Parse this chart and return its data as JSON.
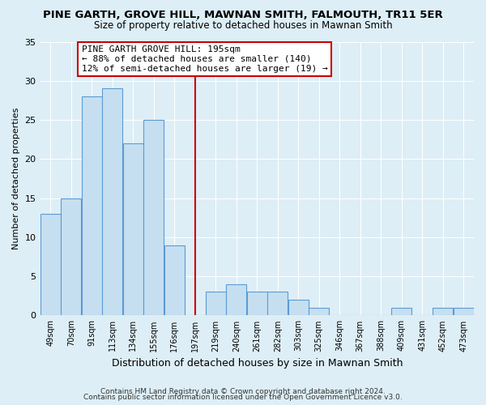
{
  "title": "PINE GARTH, GROVE HILL, MAWNAN SMITH, FALMOUTH, TR11 5ER",
  "subtitle": "Size of property relative to detached houses in Mawnan Smith",
  "xlabel": "Distribution of detached houses by size in Mawnan Smith",
  "ylabel": "Number of detached properties",
  "bin_labels": [
    "49sqm",
    "70sqm",
    "91sqm",
    "113sqm",
    "134sqm",
    "155sqm",
    "176sqm",
    "197sqm",
    "219sqm",
    "240sqm",
    "261sqm",
    "282sqm",
    "303sqm",
    "325sqm",
    "346sqm",
    "367sqm",
    "388sqm",
    "409sqm",
    "431sqm",
    "452sqm",
    "473sqm"
  ],
  "bar_heights": [
    13,
    15,
    28,
    29,
    22,
    25,
    9,
    0,
    3,
    4,
    3,
    3,
    2,
    1,
    0,
    0,
    0,
    1,
    0,
    1,
    1
  ],
  "bar_color": "#c6dff0",
  "bar_edge_color": "#5b9bd5",
  "vline_x_index": 7,
  "vline_color": "#cc0000",
  "annotation_title": "PINE GARTH GROVE HILL: 195sqm",
  "annotation_line1": "← 88% of detached houses are smaller (140)",
  "annotation_line2": "12% of semi-detached houses are larger (19) →",
  "annotation_box_color": "#ffffff",
  "annotation_box_edge": "#cc0000",
  "ylim": [
    0,
    35
  ],
  "yticks": [
    0,
    5,
    10,
    15,
    20,
    25,
    30,
    35
  ],
  "footer1": "Contains HM Land Registry data © Crown copyright and database right 2024.",
  "footer2": "Contains public sector information licensed under the Open Government Licence v3.0.",
  "bg_color": "#ddeef6"
}
